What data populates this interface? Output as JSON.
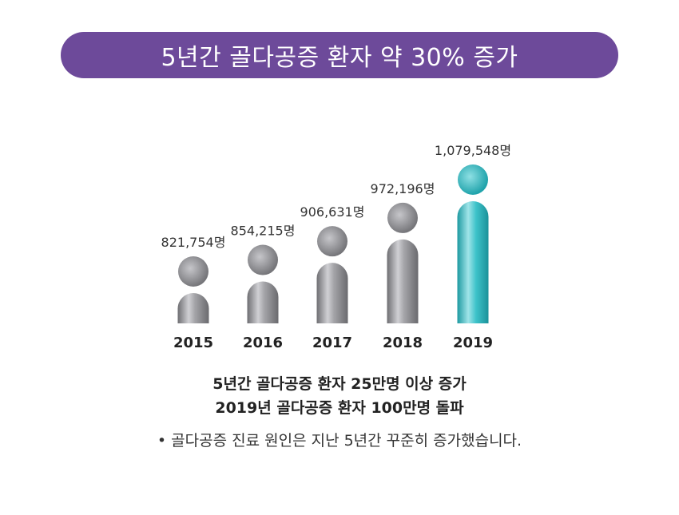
{
  "title": "5년간 골다공증 환자 약 30% 증가",
  "colors": {
    "title_bg": "#6d4a9a",
    "figure_gray": "#8e8e92",
    "figure_highlight": "#2bb5bd"
  },
  "chart_data": {
    "type": "bar",
    "categories": [
      "2015",
      "2016",
      "2017",
      "2018",
      "2019"
    ],
    "values": [
      821754,
      854215,
      906631,
      972196,
      1079548
    ],
    "value_labels": [
      "821,754명",
      "854,215명",
      "906,631명",
      "972,196명",
      "1,079,548명"
    ],
    "highlight_index": 4,
    "mark_style": "person-pictogram"
  },
  "headline": {
    "line1": "5년간 골다공증 환자 25만명 이상 증가",
    "line2": "2019년 골다공증 환자 100만명 돌파"
  },
  "note": "• 골다공증 진료 원인은 지난 5년간 꾸준히 증가했습니다."
}
